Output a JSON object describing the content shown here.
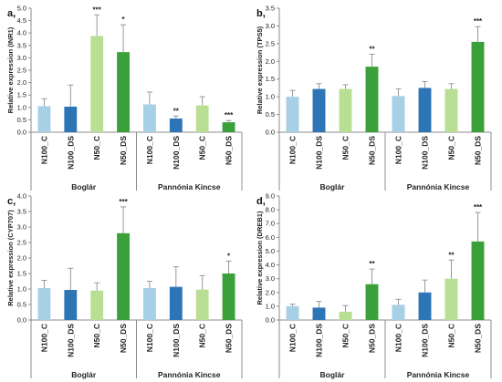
{
  "group_labels": [
    "Boglár",
    "Pannónia Kincse"
  ],
  "colors": {
    "N100_C": "#a7cfe6",
    "N100_DS": "#2e75b6",
    "N50_C": "#b9df94",
    "N50_DS": "#3aa13a",
    "error_bar": "#999999",
    "axis": "#8c8c8c"
  },
  "chart_data": [
    {
      "panel": "a,",
      "type": "bar",
      "ylabel": "Relative expression (INR1)",
      "ylim": [
        0,
        5.0
      ],
      "ytick_step": 0.5,
      "ytick_labels": [
        "0.0",
        "0.5",
        "1.0",
        "1.5",
        "2.0",
        "2.5",
        "3.0",
        "3.5",
        "4.0",
        "4.5",
        "5.0"
      ],
      "groups": [
        "Boglár",
        "Pannónia Kincse"
      ],
      "categories": [
        "N100_C",
        "N100_DS",
        "N50_C",
        "N50_DS"
      ],
      "series": [
        {
          "group": "Boglár",
          "values": [
            1.05,
            1.03,
            3.88,
            3.23
          ],
          "errors": [
            0.3,
            0.87,
            0.85,
            1.1
          ],
          "significance": [
            "",
            "",
            "***",
            "*"
          ]
        },
        {
          "group": "Pannónia Kincse",
          "values": [
            1.12,
            0.55,
            1.08,
            0.4
          ],
          "errors": [
            0.5,
            0.1,
            0.35,
            0.07
          ],
          "significance": [
            "",
            "**",
            "",
            "***"
          ]
        }
      ]
    },
    {
      "panel": "b,",
      "type": "bar",
      "ylabel": "Relative expression (TPS5)",
      "ylim": [
        0,
        3.5
      ],
      "ytick_step": 0.5,
      "ytick_labels": [
        "0.0",
        "0.5",
        "1.0",
        "1.5",
        "2.0",
        "2.5",
        "3.0",
        "3.5"
      ],
      "groups": [
        "Boglár",
        "Pannónia Kincse"
      ],
      "categories": [
        "N100_C",
        "N100_DS",
        "N50_C",
        "N50_DS"
      ],
      "series": [
        {
          "group": "Boglár",
          "values": [
            1.0,
            1.22,
            1.22,
            1.85
          ],
          "errors": [
            0.18,
            0.15,
            0.12,
            0.35
          ],
          "significance": [
            "",
            "",
            "",
            "**"
          ]
        },
        {
          "group": "Pannónia Kincse",
          "values": [
            1.02,
            1.25,
            1.22,
            2.55
          ],
          "errors": [
            0.2,
            0.18,
            0.15,
            0.43
          ],
          "significance": [
            "",
            "",
            "",
            "***"
          ]
        }
      ]
    },
    {
      "panel": "c,",
      "type": "bar",
      "ylabel": "Relative expression (CYP707)",
      "ylim": [
        0,
        4.0
      ],
      "ytick_step": 0.5,
      "ytick_labels": [
        "0.0",
        "0.5",
        "1.0",
        "1.5",
        "2.0",
        "2.5",
        "3.0",
        "3.5",
        "4.0"
      ],
      "groups": [
        "Boglár",
        "Pannónia Kincse"
      ],
      "categories": [
        "N100_C",
        "N100_DS",
        "N50_C",
        "N50_DS"
      ],
      "series": [
        {
          "group": "Boglár",
          "values": [
            1.03,
            0.97,
            0.95,
            2.8
          ],
          "errors": [
            0.25,
            0.7,
            0.25,
            0.85
          ],
          "significance": [
            "",
            "",
            "",
            "***"
          ]
        },
        {
          "group": "Pannónia Kincse",
          "values": [
            1.03,
            1.07,
            0.98,
            1.5
          ],
          "errors": [
            0.22,
            0.65,
            0.45,
            0.4
          ],
          "significance": [
            "",
            "",
            "",
            "*"
          ]
        }
      ]
    },
    {
      "panel": "d,",
      "type": "bar",
      "ylabel": "Relative expression (DREB1)",
      "ylim": [
        0,
        9.0
      ],
      "ytick_step": 1.0,
      "ytick_labels": [
        "0.0",
        "1.0",
        "2.0",
        "3.0",
        "4.0",
        "5.0",
        "6.0",
        "7.0",
        "8.0",
        "9.0"
      ],
      "groups": [
        "Boglár",
        "Pannónia Kincse"
      ],
      "categories": [
        "N100_C",
        "N100_DS",
        "N50_C",
        "N50_DS"
      ],
      "series": [
        {
          "group": "Boglár",
          "values": [
            1.0,
            0.9,
            0.6,
            2.6
          ],
          "errors": [
            0.15,
            0.45,
            0.45,
            1.1
          ],
          "significance": [
            "",
            "",
            "",
            "**"
          ]
        },
        {
          "group": "Pannónia Kincse",
          "values": [
            1.1,
            2.0,
            3.0,
            5.7
          ],
          "errors": [
            0.4,
            0.9,
            1.35,
            2.1
          ],
          "significance": [
            "",
            "",
            "**",
            "***"
          ]
        }
      ]
    }
  ]
}
